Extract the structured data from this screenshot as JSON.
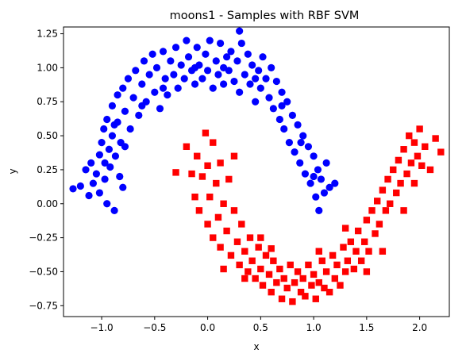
{
  "chart_data": {
    "type": "scatter",
    "title": "moons1 - Samples with RBF SVM",
    "xlabel": "x",
    "ylabel": "y",
    "xlim": [
      -1.36,
      2.28
    ],
    "ylim": [
      -0.83,
      1.3
    ],
    "xticks": [
      -1.0,
      -0.5,
      0.0,
      0.5,
      1.0,
      1.5,
      2.0
    ],
    "xtick_labels": [
      "−1.0",
      "−0.5",
      "0.0",
      "0.5",
      "1.0",
      "1.5",
      "2.0"
    ],
    "yticks": [
      -0.75,
      -0.5,
      -0.25,
      0.0,
      0.25,
      0.5,
      0.75,
      1.0,
      1.25
    ],
    "ytick_labels": [
      "−0.75",
      "−0.50",
      "−0.25",
      "0.00",
      "0.25",
      "0.50",
      "0.75",
      "1.00",
      "1.25"
    ],
    "grid": false,
    "series": [
      {
        "marker": "circle",
        "color": "#0000ff",
        "points": [
          [
            -1.27,
            0.11
          ],
          [
            -1.2,
            0.13
          ],
          [
            -1.15,
            0.25
          ],
          [
            -1.12,
            0.06
          ],
          [
            -1.1,
            0.3
          ],
          [
            -1.08,
            0.15
          ],
          [
            -1.05,
            0.22
          ],
          [
            -1.02,
            0.36
          ],
          [
            -1.02,
            0.08
          ],
          [
            -1.0,
            0.45
          ],
          [
            -0.98,
            0.55
          ],
          [
            -0.97,
            0.3
          ],
          [
            -0.97,
            0.18
          ],
          [
            -0.95,
            0.62
          ],
          [
            -0.95,
            0.0
          ],
          [
            -0.93,
            0.4
          ],
          [
            -0.92,
            0.27
          ],
          [
            -0.9,
            0.72
          ],
          [
            -0.9,
            0.5
          ],
          [
            -0.88,
            -0.05
          ],
          [
            -0.87,
            0.35
          ],
          [
            -0.85,
            0.8
          ],
          [
            -0.85,
            0.6
          ],
          [
            -0.83,
            0.2
          ],
          [
            -0.82,
            0.45
          ],
          [
            -0.8,
            0.12
          ],
          [
            -0.8,
            0.85
          ],
          [
            -0.78,
            0.68
          ],
          [
            -0.75,
            0.92
          ],
          [
            -0.73,
            0.55
          ],
          [
            -0.7,
            0.78
          ],
          [
            -0.68,
            0.98
          ],
          [
            -0.65,
            0.65
          ],
          [
            -0.62,
            0.88
          ],
          [
            -0.6,
            1.05
          ],
          [
            -0.58,
            0.75
          ],
          [
            -0.55,
            0.95
          ],
          [
            -0.52,
            1.1
          ],
          [
            -0.5,
            0.82
          ],
          [
            -0.48,
            1.0
          ],
          [
            -0.45,
            0.7
          ],
          [
            -0.42,
            1.12
          ],
          [
            -0.4,
            0.92
          ],
          [
            -0.38,
            0.8
          ],
          [
            -0.35,
            1.05
          ],
          [
            -0.32,
            0.95
          ],
          [
            -0.3,
            1.15
          ],
          [
            -0.28,
            0.85
          ],
          [
            -0.25,
            1.02
          ],
          [
            -0.22,
            0.92
          ],
          [
            -0.2,
            1.2
          ],
          [
            -0.18,
            1.08
          ],
          [
            -0.15,
            0.98
          ],
          [
            -0.12,
            0.88
          ],
          [
            -0.1,
            1.15
          ],
          [
            -0.08,
            1.02
          ],
          [
            -0.05,
            0.92
          ],
          [
            -0.02,
            1.1
          ],
          [
            0.0,
            0.98
          ],
          [
            0.02,
            1.2
          ],
          [
            0.05,
            0.85
          ],
          [
            0.08,
            1.05
          ],
          [
            0.1,
            0.95
          ],
          [
            0.12,
            1.18
          ],
          [
            0.15,
            0.88
          ],
          [
            0.18,
            1.08
          ],
          [
            0.2,
            0.98
          ],
          [
            0.22,
            1.12
          ],
          [
            0.25,
            0.9
          ],
          [
            0.28,
            1.05
          ],
          [
            0.3,
            0.82
          ],
          [
            0.32,
            1.18
          ],
          [
            0.35,
            0.95
          ],
          [
            0.38,
            1.1
          ],
          [
            0.4,
            0.88
          ],
          [
            0.42,
            1.02
          ],
          [
            0.45,
            0.75
          ],
          [
            0.48,
            0.98
          ],
          [
            0.5,
            0.85
          ],
          [
            0.52,
            1.08
          ],
          [
            0.55,
            0.92
          ],
          [
            0.58,
            0.78
          ],
          [
            0.6,
            1.0
          ],
          [
            0.62,
            0.7
          ],
          [
            0.65,
            0.9
          ],
          [
            0.68,
            0.62
          ],
          [
            0.7,
            0.82
          ],
          [
            0.72,
            0.55
          ],
          [
            0.75,
            0.75
          ],
          [
            0.77,
            0.45
          ],
          [
            0.8,
            0.65
          ],
          [
            0.82,
            0.38
          ],
          [
            0.85,
            0.58
          ],
          [
            0.87,
            0.3
          ],
          [
            0.9,
            0.5
          ],
          [
            0.92,
            0.22
          ],
          [
            0.95,
            0.42
          ],
          [
            0.97,
            0.15
          ],
          [
            1.0,
            0.35
          ],
          [
            1.02,
            0.05
          ],
          [
            1.04,
            0.25
          ],
          [
            1.05,
            -0.05
          ],
          [
            1.07,
            0.18
          ],
          [
            1.1,
            0.08
          ],
          [
            1.12,
            0.3
          ],
          [
            1.15,
            0.12
          ],
          [
            1.2,
            0.15
          ],
          [
            0.3,
            1.27
          ],
          [
            -0.88,
            0.58
          ],
          [
            -0.78,
            0.42
          ],
          [
            -0.62,
            0.72
          ],
          [
            -0.42,
            0.85
          ],
          [
            -0.12,
            1.0
          ],
          [
            0.15,
            1.0
          ],
          [
            0.45,
            0.92
          ],
          [
            0.7,
            0.72
          ],
          [
            0.88,
            0.45
          ],
          [
            1.0,
            0.2
          ]
        ]
      },
      {
        "marker": "square",
        "color": "#ff0000",
        "points": [
          [
            -0.2,
            0.42
          ],
          [
            -0.15,
            0.22
          ],
          [
            -0.12,
            0.05
          ],
          [
            -0.1,
            0.35
          ],
          [
            -0.08,
            -0.05
          ],
          [
            -0.05,
            0.2
          ],
          [
            -0.02,
            0.52
          ],
          [
            0.0,
            0.28
          ],
          [
            0.0,
            -0.15
          ],
          [
            0.02,
            0.05
          ],
          [
            0.05,
            -0.25
          ],
          [
            0.05,
            0.45
          ],
          [
            0.08,
            0.15
          ],
          [
            0.1,
            -0.1
          ],
          [
            0.12,
            0.3
          ],
          [
            0.12,
            -0.32
          ],
          [
            0.15,
            0.0
          ],
          [
            0.18,
            -0.2
          ],
          [
            0.2,
            0.18
          ],
          [
            0.22,
            -0.38
          ],
          [
            0.25,
            -0.05
          ],
          [
            0.28,
            -0.28
          ],
          [
            0.3,
            -0.45
          ],
          [
            0.32,
            -0.15
          ],
          [
            0.35,
            -0.35
          ],
          [
            0.38,
            -0.5
          ],
          [
            0.4,
            -0.25
          ],
          [
            0.42,
            -0.42
          ],
          [
            0.45,
            -0.55
          ],
          [
            0.48,
            -0.32
          ],
          [
            0.5,
            -0.48
          ],
          [
            0.52,
            -0.6
          ],
          [
            0.55,
            -0.38
          ],
          [
            0.58,
            -0.52
          ],
          [
            0.6,
            -0.65
          ],
          [
            0.62,
            -0.42
          ],
          [
            0.65,
            -0.58
          ],
          [
            0.68,
            -0.48
          ],
          [
            0.7,
            -0.7
          ],
          [
            0.72,
            -0.55
          ],
          [
            0.75,
            -0.62
          ],
          [
            0.78,
            -0.45
          ],
          [
            0.8,
            -0.72
          ],
          [
            0.82,
            -0.58
          ],
          [
            0.85,
            -0.5
          ],
          [
            0.88,
            -0.65
          ],
          [
            0.9,
            -0.55
          ],
          [
            0.92,
            -0.68
          ],
          [
            0.95,
            -0.45
          ],
          [
            0.98,
            -0.6
          ],
          [
            1.0,
            -0.52
          ],
          [
            1.02,
            -0.7
          ],
          [
            1.05,
            -0.58
          ],
          [
            1.08,
            -0.42
          ],
          [
            1.1,
            -0.62
          ],
          [
            1.12,
            -0.5
          ],
          [
            1.15,
            -0.65
          ],
          [
            1.18,
            -0.38
          ],
          [
            1.2,
            -0.55
          ],
          [
            1.22,
            -0.45
          ],
          [
            1.25,
            -0.6
          ],
          [
            1.28,
            -0.32
          ],
          [
            1.3,
            -0.5
          ],
          [
            1.32,
            -0.42
          ],
          [
            1.35,
            -0.28
          ],
          [
            1.38,
            -0.48
          ],
          [
            1.4,
            -0.35
          ],
          [
            1.42,
            -0.2
          ],
          [
            1.45,
            -0.42
          ],
          [
            1.48,
            -0.28
          ],
          [
            1.5,
            -0.12
          ],
          [
            1.52,
            -0.35
          ],
          [
            1.55,
            -0.05
          ],
          [
            1.58,
            -0.22
          ],
          [
            1.6,
            0.02
          ],
          [
            1.62,
            -0.15
          ],
          [
            1.65,
            0.1
          ],
          [
            1.68,
            -0.05
          ],
          [
            1.7,
            0.18
          ],
          [
            1.72,
            0.0
          ],
          [
            1.75,
            0.25
          ],
          [
            1.78,
            0.08
          ],
          [
            1.8,
            0.32
          ],
          [
            1.82,
            0.15
          ],
          [
            1.85,
            0.4
          ],
          [
            1.88,
            0.22
          ],
          [
            1.9,
            0.5
          ],
          [
            1.92,
            0.3
          ],
          [
            1.95,
            0.45
          ],
          [
            1.98,
            0.35
          ],
          [
            2.0,
            0.55
          ],
          [
            2.02,
            0.28
          ],
          [
            2.05,
            0.42
          ],
          [
            2.1,
            0.25
          ],
          [
            2.15,
            0.48
          ],
          [
            2.2,
            0.38
          ],
          [
            -0.3,
            0.23
          ],
          [
            0.15,
            -0.48
          ],
          [
            1.65,
            -0.35
          ],
          [
            1.95,
            0.15
          ],
          [
            0.6,
            -0.33
          ],
          [
            1.3,
            -0.18
          ],
          [
            0.35,
            -0.55
          ],
          [
            1.05,
            -0.35
          ],
          [
            0.25,
            0.35
          ],
          [
            1.85,
            -0.05
          ],
          [
            0.5,
            -0.25
          ],
          [
            1.5,
            -0.5
          ]
        ]
      }
    ]
  }
}
